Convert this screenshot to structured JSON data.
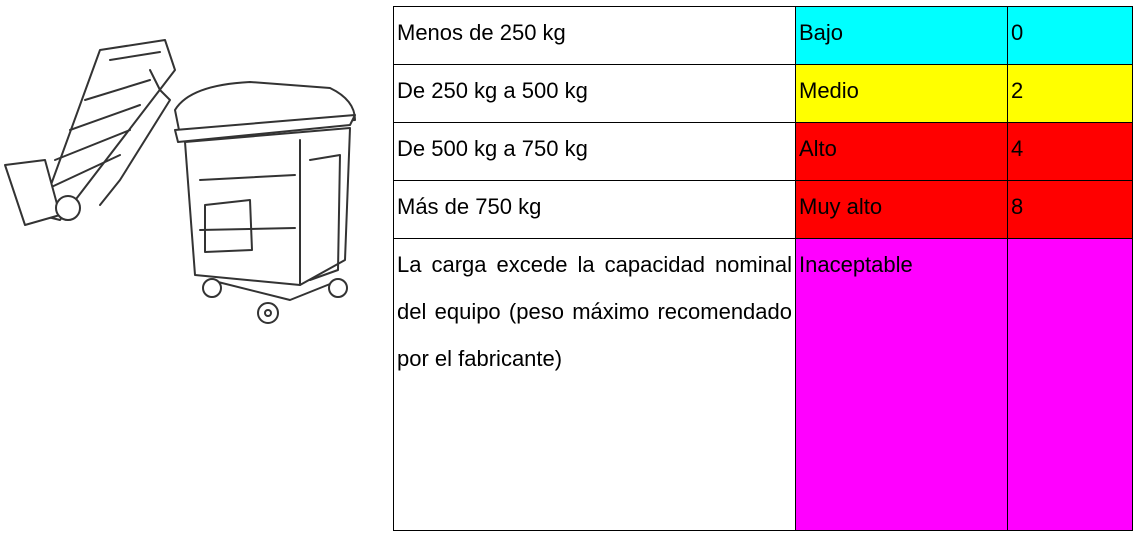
{
  "table": {
    "rows": [
      {
        "load": "Menos de 250 kg",
        "level": "Bajo",
        "score": 0,
        "color": "#00ffff"
      },
      {
        "load": "De 250 kg a 500 kg",
        "level": "Medio",
        "score": 2,
        "color": "#ffff00"
      },
      {
        "load": "De 500 kg a 750 kg",
        "level": "Alto",
        "score": 4,
        "color": "#ff0000"
      },
      {
        "load": "Más de 750 kg",
        "level": "Muy alto",
        "score": 8,
        "color": "#ff0000"
      },
      {
        "load": "La carga excede la capacidad nominal del equipo (peso máximo recomendado por el fabricante)",
        "level": "Inaceptable",
        "color": "#ff00ff"
      }
    ]
  }
}
